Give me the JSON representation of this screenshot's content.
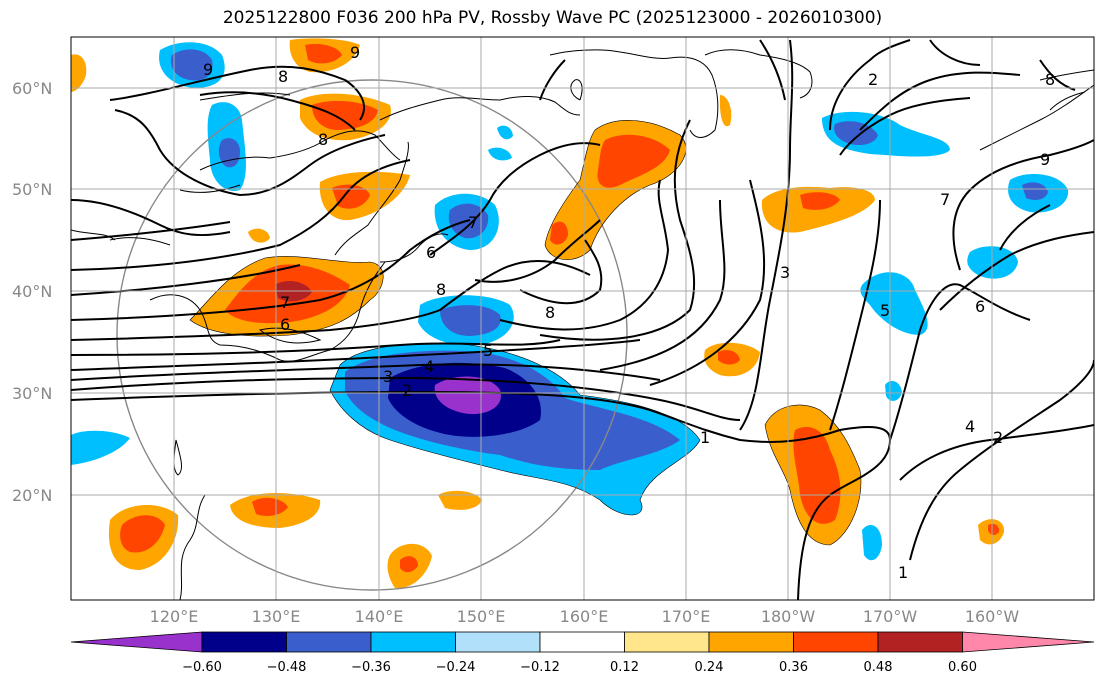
{
  "title": "2025122800 F036 200 hPa PV, Rossby Wave PC (2025123000 - 2026010300)",
  "lat_labels": [
    "60°N",
    "50°N",
    "40°N",
    "30°N",
    "20°N"
  ],
  "lon_labels": [
    "120°E",
    "130°E",
    "140°E",
    "150°E",
    "160°E",
    "170°E",
    "180°W",
    "170°W",
    "160°W"
  ],
  "colorbar": {
    "ticks": [
      "−0.60",
      "−0.48",
      "−0.36",
      "−0.24",
      "−0.12",
      "0.12",
      "0.24",
      "0.36",
      "0.48",
      "0.60"
    ],
    "colors": [
      "#9932cc",
      "#00008b",
      "#3a5fcd",
      "#00bfff",
      "#b0e0fa",
      "#ffffff",
      "#ffe68a",
      "#ffa500",
      "#ff4500",
      "#b22222",
      "#ff88aa"
    ]
  },
  "contour_labels": [
    "9",
    "8",
    "9",
    "8",
    "7",
    "6",
    "7",
    "6",
    "8",
    "8",
    "5",
    "4",
    "3",
    "2",
    "1",
    "2",
    "7",
    "6",
    "5",
    "4",
    "2",
    "1",
    "3",
    "9",
    "8"
  ]
}
